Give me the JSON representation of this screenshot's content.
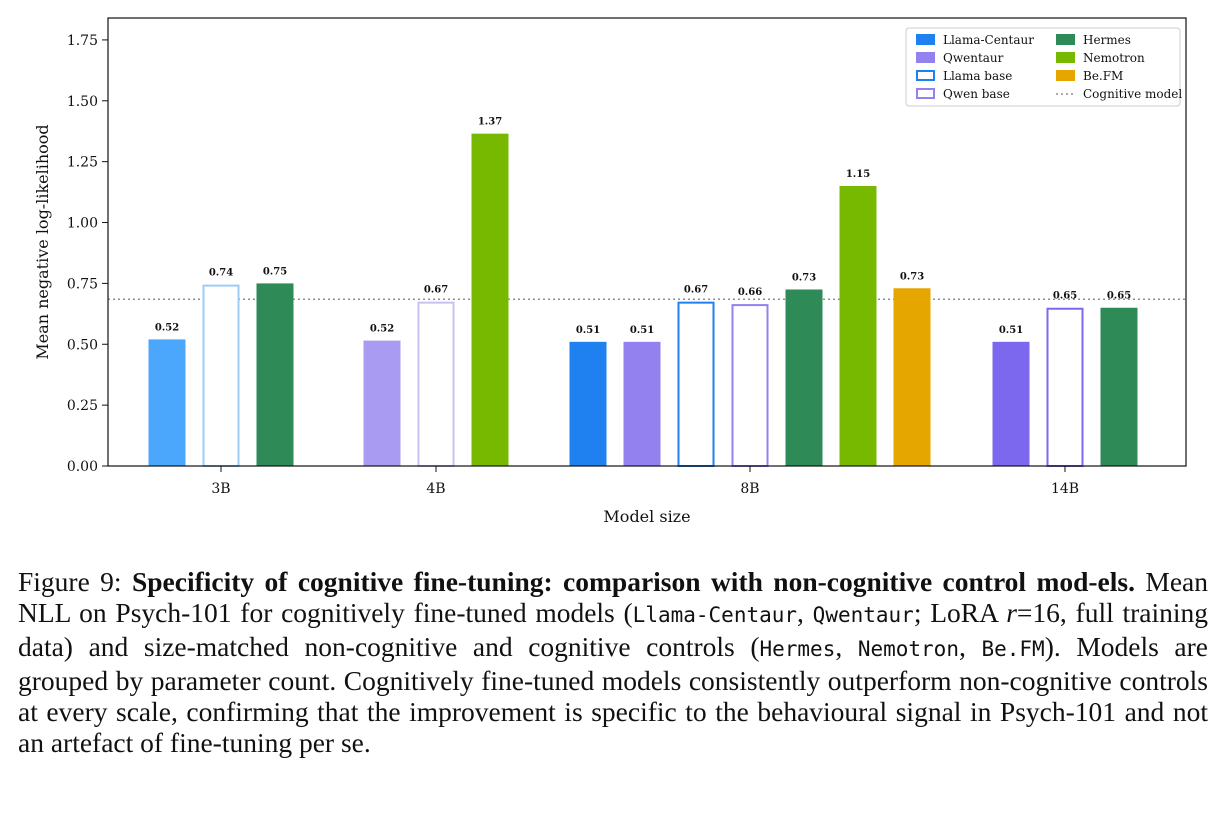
{
  "chart_data": {
    "type": "bar",
    "xlabel": "Model size",
    "ylabel": "Mean negative log-likelihood",
    "ylim": [
      0,
      1.84
    ],
    "yticks": [
      "0.00",
      "0.25",
      "0.50",
      "0.75",
      "1.00",
      "1.25",
      "1.50",
      "1.75"
    ],
    "grid": false,
    "legend_position": "top-right",
    "reference_line": {
      "name": "Cognitive model",
      "value": 0.685
    },
    "categories": [
      "3B",
      "4B",
      "8B",
      "14B"
    ],
    "series": [
      {
        "name": "Llama-Centaur",
        "color": "#1f80f0",
        "style": "filled"
      },
      {
        "name": "Qwentaur",
        "color": "#9381f0",
        "style": "filled"
      },
      {
        "name": "Llama base",
        "color": "#1f80f0",
        "style": "outline"
      },
      {
        "name": "Qwen base",
        "color": "#9381f0",
        "style": "outline"
      },
      {
        "name": "Hermes",
        "color": "#2e8b57",
        "style": "filled"
      },
      {
        "name": "Nemotron",
        "color": "#77b800",
        "style": "filled"
      },
      {
        "name": "Be.FM",
        "color": "#e6a600",
        "style": "filled"
      }
    ],
    "bars": [
      {
        "category": "3B",
        "series": "Llama-Centaur",
        "value": 0.52,
        "label": "0.52",
        "color": "#4ba7fb",
        "style": "filled"
      },
      {
        "category": "3B",
        "series": "Llama base",
        "value": 0.745,
        "label": "0.74",
        "color": "#9ccdf4",
        "style": "outline"
      },
      {
        "category": "3B",
        "series": "Hermes",
        "value": 0.75,
        "label": "0.75",
        "color": "#2e8b57",
        "style": "filled"
      },
      {
        "category": "4B",
        "series": "Qwentaur",
        "value": 0.515,
        "label": "0.52",
        "color": "#a99bf2",
        "style": "filled"
      },
      {
        "category": "4B",
        "series": "Qwen base",
        "value": 0.675,
        "label": "0.67",
        "color": "#c9c1f3",
        "style": "outline"
      },
      {
        "category": "4B",
        "series": "Nemotron",
        "value": 1.365,
        "label": "1.37",
        "color": "#77b800",
        "style": "filled"
      },
      {
        "category": "8B",
        "series": "Llama-Centaur",
        "value": 0.51,
        "label": "0.51",
        "color": "#1f80f0",
        "style": "filled"
      },
      {
        "category": "8B",
        "series": "Qwentaur",
        "value": 0.51,
        "label": "0.51",
        "color": "#9381f0",
        "style": "filled"
      },
      {
        "category": "8B",
        "series": "Llama base",
        "value": 0.675,
        "label": "0.67",
        "color": "#1f80f0",
        "style": "outline"
      },
      {
        "category": "8B",
        "series": "Qwen base",
        "value": 0.665,
        "label": "0.66",
        "color": "#9381f0",
        "style": "outline"
      },
      {
        "category": "8B",
        "series": "Hermes",
        "value": 0.725,
        "label": "0.73",
        "color": "#2e8b57",
        "style": "filled"
      },
      {
        "category": "8B",
        "series": "Nemotron",
        "value": 1.15,
        "label": "1.15",
        "color": "#77b800",
        "style": "filled"
      },
      {
        "category": "8B",
        "series": "Be.FM",
        "value": 0.73,
        "label": "0.73",
        "color": "#e6a600",
        "style": "filled"
      },
      {
        "category": "14B",
        "series": "Qwentaur",
        "value": 0.51,
        "label": "0.51",
        "color": "#7b68ee",
        "style": "filled"
      },
      {
        "category": "14B",
        "series": "Qwen base",
        "value": 0.65,
        "label": "0.65",
        "color": "#7b68ee",
        "style": "outline"
      },
      {
        "category": "14B",
        "series": "Hermes",
        "value": 0.65,
        "label": "0.65",
        "color": "#2e8b57",
        "style": "filled"
      }
    ]
  },
  "caption": {
    "figure_label": "Figure 9:",
    "title_bold": "Specificity of cognitive fine-tuning: comparison with non-cognitive control mod-els.",
    "t1": "Mean NLL on Psych-101 for cognitively fine-tuned models (",
    "m1": "Llama-Centaur",
    "t2": ", ",
    "m2": "Qwentaur",
    "t3": "; LoRA ",
    "var_r": "r",
    "t4": "=16, full training data) and size-matched non-cognitive and cognitive controls (",
    "m3": "Hermes",
    "t5": ", ",
    "m4": "Nemotron",
    "t6": ", ",
    "m5": "Be.FM",
    "t7": "). Models are grouped by parameter count. Cognitively fine-tuned models consistently outperform non-cognitive controls at every scale, confirming that the improvement is specific to the behavioural signal in Psych-101 and not an artefact of fine-tuning per se."
  }
}
